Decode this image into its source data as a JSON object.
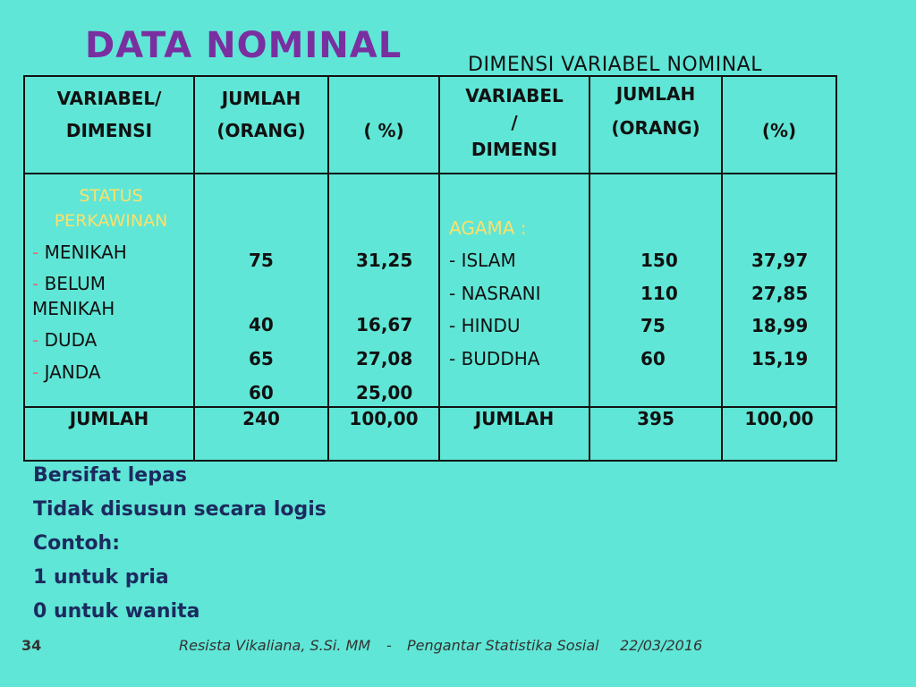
{
  "slide": {
    "title": "DATA NOMINAL",
    "subtitle": "DIMENSI VARIABEL NOMINAL",
    "page_number": "34",
    "footer_author": "Resista Vikaliana, S.Si. MM",
    "footer_sep": "-",
    "footer_course": "Pengantar Statistika Sosial",
    "footer_date": "22/03/2016"
  },
  "table": {
    "headers": {
      "c1a": "VARIABEL/",
      "c1b": "DIMENSI",
      "c2a": "JUMLAH",
      "c2b": "(ORANG)",
      "c3": "( %)",
      "c4a": "VARIABEL",
      "c4b": "/",
      "c4c": "DIMENSI",
      "c5a": "JUMLAH",
      "c5b": "(ORANG)",
      "c6": "(%)"
    },
    "status": {
      "title_a": "STATUS",
      "title_b": "PERKAWINAN",
      "dash": "-",
      "items": [
        "MENIKAH",
        "BELUM MENIKAH",
        "DUDA",
        "JANDA"
      ],
      "counts": [
        "75",
        "40",
        "65",
        "60"
      ],
      "percents": [
        "31,25",
        "16,67",
        "27,08",
        "25,00"
      ]
    },
    "agama": {
      "title": "AGAMA :",
      "items": [
        "- ISLAM",
        "- NASRANI",
        "- HINDU",
        "- BUDDHA"
      ],
      "counts": [
        "150",
        "110",
        "75",
        "60"
      ],
      "percents": [
        "37,97",
        "27,85",
        "18,99",
        "15,19"
      ]
    },
    "totals": {
      "label1": "JUMLAH",
      "count1": "240",
      "pct1": "100,00",
      "label2": "JUMLAH",
      "count2": "395",
      "pct2": "100,00"
    }
  },
  "bullets": [
    "Bersifat lepas",
    "Tidak disusun secara logis",
    "Contoh:",
    "1 untuk pria",
    "0 untuk wanita"
  ]
}
